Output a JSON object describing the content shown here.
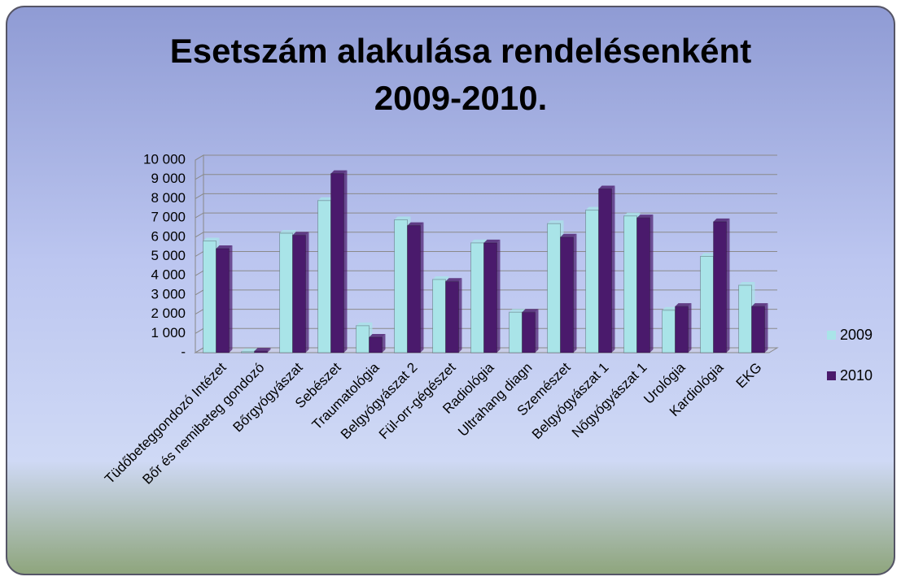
{
  "chart_data": {
    "type": "bar",
    "title": [
      "Esetszám alakulása rendelésenként",
      "2009-2010."
    ],
    "categories": [
      "Tüdőbeteggondozó Intézet",
      "Bőr és nemibeteg gondozó",
      "Bőrgyógyászat",
      "Sebészet",
      "Traumatológia",
      "Belgyógyászat 2",
      "Fül-orr-gégészet",
      "Radiológia",
      "Ultrahang diagn",
      "Szemészet",
      "Belgyógyászat 1",
      "Nőgyógyászat 1",
      "Urológia",
      "Kardiológia",
      "EKG"
    ],
    "series": [
      {
        "name": "2009",
        "color": "#a9e4e8",
        "values": [
          5800,
          50,
          6200,
          7900,
          1400,
          6900,
          3800,
          5700,
          2100,
          6700,
          7400,
          7100,
          2200,
          5000,
          3500
        ]
      },
      {
        "name": "2010",
        "color": "#4a1a6c",
        "values": [
          5400,
          80,
          6100,
          9300,
          800,
          6600,
          3700,
          5700,
          2100,
          6000,
          8500,
          7000,
          2400,
          6800,
          2400
        ]
      }
    ],
    "ylim": [
      0,
      10000
    ],
    "yticks": [
      {
        "value": 0,
        "label": "-"
      },
      {
        "value": 1000,
        "label": "1 000"
      },
      {
        "value": 2000,
        "label": "2 000"
      },
      {
        "value": 3000,
        "label": "3 000"
      },
      {
        "value": 4000,
        "label": "4 000"
      },
      {
        "value": 5000,
        "label": "5 000"
      },
      {
        "value": 6000,
        "label": "6 000"
      },
      {
        "value": 7000,
        "label": "7 000"
      },
      {
        "value": 8000,
        "label": "8 000"
      },
      {
        "value": 9000,
        "label": "9 000"
      },
      {
        "value": 10000,
        "label": "10 000"
      }
    ],
    "grid": true,
    "legend": "right"
  }
}
